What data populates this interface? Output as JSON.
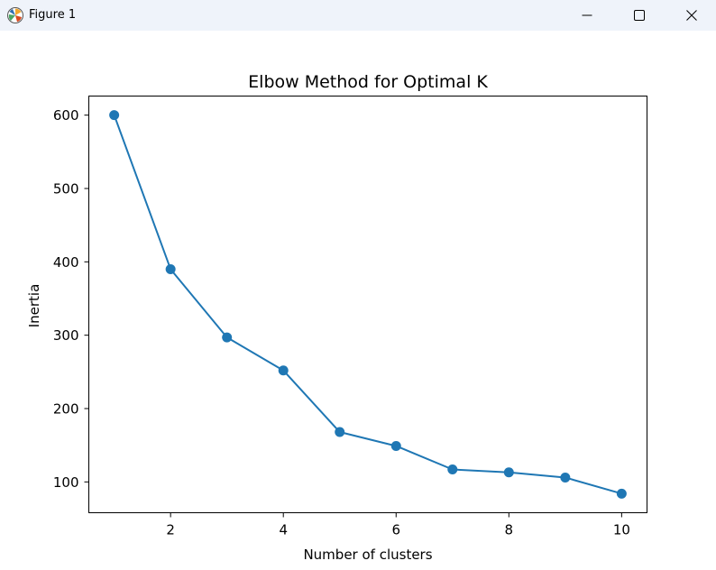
{
  "window": {
    "title": "Figure 1",
    "icon": "matplotlib-logo-icon",
    "controls": [
      "minimize-icon",
      "maximize-icon",
      "close-icon"
    ]
  },
  "chart_data": {
    "type": "line",
    "title": "Elbow Method for Optimal K",
    "xlabel": "Number of clusters",
    "ylabel": "Inertia",
    "x": [
      1,
      2,
      3,
      4,
      5,
      6,
      7,
      8,
      9,
      10
    ],
    "series": [
      {
        "values": [
          600,
          390,
          297,
          252,
          168,
          149,
          117,
          113,
          106,
          84
        ]
      }
    ],
    "xlim": [
      0.55,
      10.45
    ],
    "ylim": [
      58,
      626
    ],
    "xticks": [
      2,
      4,
      6,
      8,
      10
    ],
    "xtick_labels": [
      "2",
      "4",
      "6",
      "8",
      "10"
    ],
    "yticks": [
      100,
      200,
      300,
      400,
      500,
      600
    ],
    "ytick_labels": [
      "100",
      "200",
      "300",
      "400",
      "500",
      "600"
    ],
    "marker": "circle",
    "color": "#1f77b4",
    "grid": false,
    "legend": "none"
  }
}
